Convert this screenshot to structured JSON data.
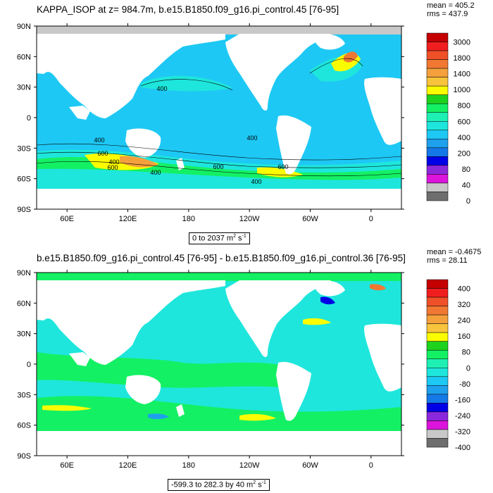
{
  "colors": {
    "land": "#ffffff",
    "ocean_base": "#1ec8f4",
    "outline": "#000000"
  },
  "chart_data": [
    {
      "type": "heatmap",
      "title": "KAPPA_ISOP at z= 984.7m, b.e15.B1850.f09_g16.pi_control.45 [76-95]",
      "stats": {
        "mean": "mean = 405.2",
        "rms": "rms = 437.9"
      },
      "range_prefix": "0 to 2037 m",
      "range_exp": "2",
      "range_mid": " s",
      "range_exp2": "-1",
      "y_ticks": [
        "90N",
        "60N",
        "30N",
        "0",
        "30S",
        "60S",
        "90S"
      ],
      "x_ticks": [
        "60E",
        "120E",
        "180",
        "120W",
        "60W",
        "0"
      ],
      "colorbar": {
        "labels": [
          "3000",
          "1800",
          "1400",
          "1000",
          "800",
          "600",
          "400",
          "200",
          "80",
          "40",
          "0"
        ],
        "colors": [
          "#c40000",
          "#f01e1e",
          "#f05028",
          "#f07832",
          "#f4a03c",
          "#f8c43c",
          "#fcfc00",
          "#1ed21e",
          "#14f064",
          "#1ef0b4",
          "#1ee6dc",
          "#1ec8f4",
          "#1ea0ec",
          "#1478e6",
          "#0000e6",
          "#8c28dc",
          "#dc14dc",
          "#c8c8c8",
          "#6e6e6e"
        ]
      },
      "contour_labels": [
        "400",
        "400",
        "400",
        "600",
        "600",
        "400",
        "600",
        "600",
        "400",
        "400"
      ]
    },
    {
      "type": "heatmap",
      "title": "b.e15.B1850.f09_g16.pi_control.45 [76-95] - b.e15.B1850.f09_g16.pi_control.36 [76-95]",
      "stats": {
        "mean": "mean = -0.4675",
        "rms": "rms = 28.11"
      },
      "range_prefix": "-599.3 to 282.3 by 40 m",
      "range_exp": "2",
      "range_mid": " s",
      "range_exp2": "-1",
      "y_ticks": [
        "90N",
        "60N",
        "30N",
        "0",
        "30S",
        "60S",
        "90S"
      ],
      "x_ticks": [
        "60E",
        "120E",
        "180",
        "120W",
        "60W",
        "0"
      ],
      "colorbar": {
        "labels": [
          "400",
          "320",
          "240",
          "160",
          "80",
          "0",
          "-80",
          "-160",
          "-240",
          "-320",
          "-400"
        ],
        "colors": [
          "#c40000",
          "#f01e1e",
          "#f05028",
          "#f07832",
          "#f4a03c",
          "#f8c43c",
          "#fcfc00",
          "#1ed21e",
          "#14f064",
          "#1ef0b4",
          "#1ee6dc",
          "#1ec8f4",
          "#1ea0ec",
          "#1478e6",
          "#0000e6",
          "#8c28dc",
          "#dc14dc",
          "#c8c8c8",
          "#6e6e6e"
        ]
      }
    }
  ]
}
